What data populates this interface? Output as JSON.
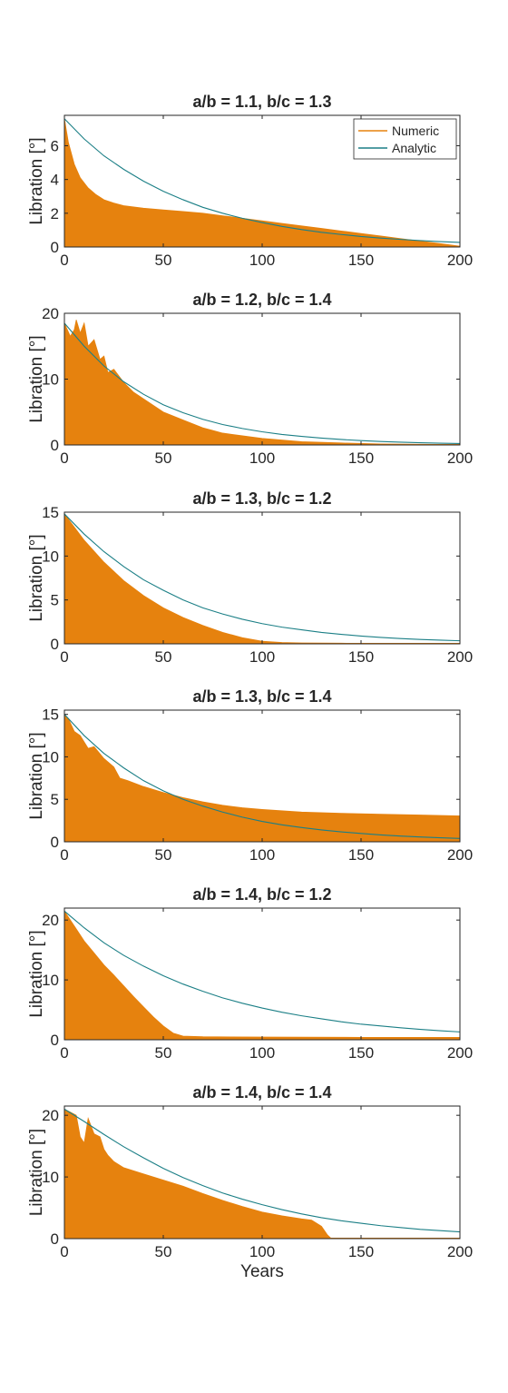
{
  "chart_data": [
    {
      "type": "area",
      "title": "a/b = 1.1, b/c = 1.3",
      "ylabel": "Libration [°]",
      "xlabel": "",
      "xlim": [
        0,
        200
      ],
      "ylim": [
        0,
        7.8
      ],
      "xticks": [
        0,
        50,
        100,
        150,
        200
      ],
      "yticks": [
        0,
        2,
        4,
        6
      ],
      "legend": {
        "position": "top-right",
        "entries": [
          "Numeric",
          "Analytic"
        ]
      },
      "series": [
        {
          "name": "Numeric",
          "color": "#E6820E",
          "x": [
            0,
            2,
            5,
            8,
            12,
            16,
            20,
            25,
            30,
            40,
            50,
            60,
            70,
            80,
            90,
            100,
            110,
            120,
            130,
            140,
            150,
            160,
            170,
            180,
            190,
            200
          ],
          "y": [
            7.6,
            6.2,
            4.9,
            4.1,
            3.5,
            3.1,
            2.8,
            2.6,
            2.45,
            2.3,
            2.2,
            2.1,
            2.0,
            1.85,
            1.7,
            1.55,
            1.4,
            1.25,
            1.1,
            0.95,
            0.8,
            0.65,
            0.5,
            0.35,
            0.2,
            0.05
          ]
        },
        {
          "name": "Analytic",
          "color": "#1B7F86",
          "x": [
            0,
            10,
            20,
            30,
            40,
            50,
            60,
            70,
            80,
            90,
            100,
            110,
            120,
            130,
            140,
            150,
            160,
            170,
            180,
            190,
            200
          ],
          "y": [
            7.6,
            6.4,
            5.4,
            4.6,
            3.9,
            3.3,
            2.8,
            2.35,
            2.0,
            1.7,
            1.45,
            1.22,
            1.03,
            0.87,
            0.74,
            0.62,
            0.53,
            0.45,
            0.38,
            0.32,
            0.27
          ]
        }
      ]
    },
    {
      "type": "area",
      "title": "a/b = 1.2, b/c = 1.4",
      "ylabel": "Libration [°]",
      "xlabel": "",
      "xlim": [
        0,
        200
      ],
      "ylim": [
        0,
        20
      ],
      "xticks": [
        0,
        50,
        100,
        150,
        200
      ],
      "yticks": [
        0,
        10,
        20
      ],
      "series": [
        {
          "name": "Numeric",
          "color": "#E6820E",
          "x": [
            0,
            3,
            5,
            6,
            8,
            10,
            12,
            15,
            18,
            20,
            22,
            25,
            30,
            35,
            40,
            50,
            60,
            70,
            75,
            80,
            90,
            100,
            120,
            140,
            160,
            180,
            200
          ],
          "y": [
            18.5,
            16.5,
            17.5,
            19.0,
            17.0,
            18.5,
            15.0,
            16.0,
            13.0,
            13.5,
            11.0,
            11.5,
            9.5,
            8.0,
            7.0,
            5.0,
            3.8,
            2.6,
            2.2,
            1.8,
            1.4,
            1.0,
            0.5,
            0.3,
            0.15,
            0.1,
            0.05
          ]
        },
        {
          "name": "Analytic",
          "color": "#1B7F86",
          "x": [
            0,
            10,
            20,
            30,
            40,
            50,
            60,
            70,
            80,
            90,
            100,
            110,
            120,
            130,
            140,
            150,
            160,
            170,
            180,
            190,
            200
          ],
          "y": [
            18.5,
            15.0,
            12.0,
            9.6,
            7.7,
            6.1,
            4.9,
            3.9,
            3.1,
            2.5,
            2.0,
            1.6,
            1.3,
            1.04,
            0.83,
            0.66,
            0.53,
            0.42,
            0.34,
            0.27,
            0.22
          ]
        }
      ]
    },
    {
      "type": "area",
      "title": "a/b = 1.3, b/c = 1.2",
      "ylabel": "Libration [°]",
      "xlabel": "",
      "xlim": [
        0,
        200
      ],
      "ylim": [
        0,
        15
      ],
      "xticks": [
        0,
        50,
        100,
        150,
        200
      ],
      "yticks": [
        0,
        5,
        10,
        15
      ],
      "series": [
        {
          "name": "Numeric",
          "color": "#E6820E",
          "x": [
            0,
            10,
            20,
            30,
            40,
            50,
            60,
            70,
            80,
            90,
            100,
            110,
            120,
            140,
            160,
            180,
            200
          ],
          "y": [
            14.8,
            11.8,
            9.3,
            7.2,
            5.5,
            4.1,
            3.0,
            2.1,
            1.3,
            0.7,
            0.3,
            0.15,
            0.1,
            0.07,
            0.05,
            0.04,
            0.03
          ]
        },
        {
          "name": "Analytic",
          "color": "#1B7F86",
          "x": [
            0,
            10,
            20,
            30,
            40,
            50,
            60,
            70,
            80,
            90,
            100,
            110,
            120,
            130,
            140,
            150,
            160,
            170,
            180,
            190,
            200
          ],
          "y": [
            14.8,
            12.5,
            10.5,
            8.8,
            7.3,
            6.1,
            5.0,
            4.1,
            3.4,
            2.8,
            2.3,
            1.9,
            1.6,
            1.3,
            1.08,
            0.89,
            0.73,
            0.6,
            0.5,
            0.42,
            0.35
          ]
        }
      ]
    },
    {
      "type": "area",
      "title": "a/b = 1.3, b/c = 1.4",
      "ylabel": "Libration [°]",
      "xlabel": "",
      "xlim": [
        0,
        200
      ],
      "ylim": [
        0,
        15.5
      ],
      "xticks": [
        0,
        50,
        100,
        150,
        200
      ],
      "yticks": [
        0,
        5,
        10,
        15
      ],
      "series": [
        {
          "name": "Numeric",
          "color": "#E6820E",
          "x": [
            0,
            2,
            5,
            8,
            12,
            15,
            20,
            25,
            28,
            32,
            40,
            50,
            60,
            70,
            80,
            90,
            100,
            120,
            140,
            160,
            180,
            200
          ],
          "y": [
            15.0,
            14.5,
            13.0,
            12.5,
            11.0,
            11.2,
            9.8,
            8.8,
            7.5,
            7.2,
            6.5,
            5.8,
            5.2,
            4.7,
            4.3,
            4.0,
            3.8,
            3.5,
            3.35,
            3.25,
            3.15,
            3.05
          ]
        },
        {
          "name": "Analytic",
          "color": "#1B7F86",
          "x": [
            0,
            10,
            20,
            30,
            40,
            50,
            60,
            70,
            80,
            90,
            100,
            110,
            120,
            130,
            140,
            150,
            160,
            170,
            180,
            190,
            200
          ],
          "y": [
            15.0,
            12.5,
            10.4,
            8.7,
            7.2,
            6.0,
            5.0,
            4.2,
            3.5,
            2.9,
            2.4,
            2.0,
            1.68,
            1.4,
            1.17,
            0.98,
            0.81,
            0.68,
            0.57,
            0.47,
            0.39
          ]
        }
      ]
    },
    {
      "type": "area",
      "title": "a/b = 1.4, b/c = 1.2",
      "ylabel": "Libration [°]",
      "xlabel": "",
      "xlim": [
        0,
        200
      ],
      "ylim": [
        0,
        22
      ],
      "xticks": [
        0,
        50,
        100,
        150,
        200
      ],
      "yticks": [
        0,
        10,
        20
      ],
      "series": [
        {
          "name": "Numeric",
          "color": "#E6820E",
          "x": [
            0,
            5,
            10,
            15,
            20,
            25,
            30,
            35,
            40,
            45,
            50,
            55,
            60,
            70,
            100,
            150,
            200
          ],
          "y": [
            21.5,
            19.0,
            16.5,
            14.5,
            12.5,
            10.8,
            9.0,
            7.2,
            5.5,
            3.8,
            2.3,
            1.1,
            0.6,
            0.5,
            0.45,
            0.4,
            0.4
          ]
        },
        {
          "name": "Analytic",
          "color": "#1B7F86",
          "x": [
            0,
            10,
            20,
            30,
            40,
            50,
            60,
            70,
            80,
            90,
            100,
            110,
            120,
            130,
            140,
            150,
            160,
            170,
            180,
            190,
            200
          ],
          "y": [
            21.5,
            18.7,
            16.2,
            14.1,
            12.3,
            10.7,
            9.3,
            8.1,
            7.0,
            6.1,
            5.3,
            4.6,
            4.0,
            3.5,
            3.0,
            2.6,
            2.3,
            2.0,
            1.74,
            1.51,
            1.31
          ]
        }
      ]
    },
    {
      "type": "area",
      "title": "a/b = 1.4, b/c = 1.4",
      "ylabel": "Libration [°]",
      "xlabel": "Years",
      "xlim": [
        0,
        200
      ],
      "ylim": [
        0,
        21.5
      ],
      "xticks": [
        0,
        50,
        100,
        150,
        200
      ],
      "yticks": [
        0,
        10,
        20
      ],
      "series": [
        {
          "name": "Numeric",
          "color": "#E6820E",
          "x": [
            0,
            3,
            6,
            8,
            10,
            12,
            15,
            18,
            20,
            22,
            25,
            30,
            40,
            50,
            60,
            70,
            80,
            90,
            100,
            110,
            120,
            125,
            130,
            133,
            135,
            140,
            200
          ],
          "y": [
            21.0,
            20.5,
            20.0,
            16.5,
            15.5,
            19.5,
            17.0,
            16.5,
            14.5,
            13.5,
            12.5,
            11.5,
            10.5,
            9.5,
            8.5,
            7.3,
            6.2,
            5.2,
            4.3,
            3.7,
            3.2,
            3.0,
            2.0,
            0.6,
            0.0,
            0.0,
            0.0
          ]
        },
        {
          "name": "Analytic",
          "color": "#1B7F86",
          "x": [
            0,
            10,
            20,
            30,
            40,
            50,
            60,
            70,
            80,
            90,
            100,
            110,
            120,
            130,
            140,
            150,
            160,
            170,
            180,
            190,
            200
          ],
          "y": [
            21.0,
            19.0,
            16.9,
            14.9,
            13.1,
            11.4,
            9.9,
            8.6,
            7.4,
            6.4,
            5.5,
            4.7,
            4.0,
            3.4,
            2.9,
            2.5,
            2.1,
            1.8,
            1.5,
            1.3,
            1.1
          ]
        }
      ]
    }
  ]
}
